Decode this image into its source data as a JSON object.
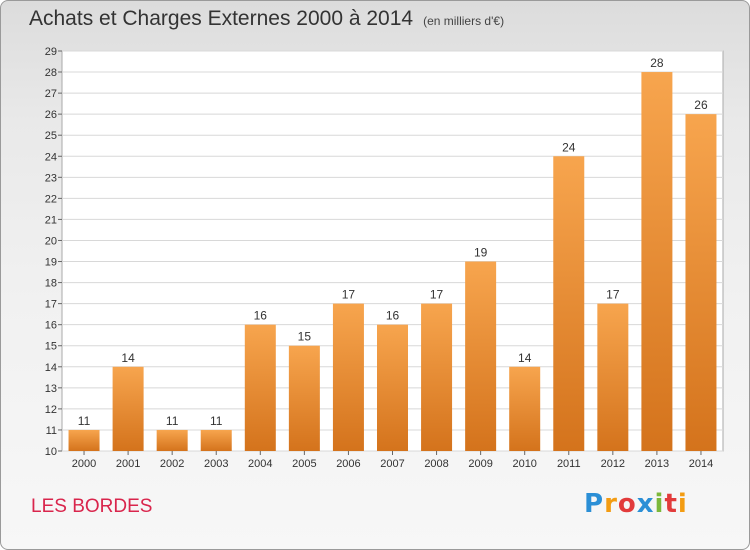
{
  "header": {
    "title": "Achats et Charges Externes 2000 à 2014",
    "subtitle": "(en milliers d'€)"
  },
  "footer": {
    "commune": "LES BORDES",
    "logo": [
      "P",
      "r",
      "o",
      "x",
      "i",
      "t",
      "i"
    ],
    "logo_colors": [
      "#2b8fd6",
      "#f39c12",
      "#e23b3b",
      "#2b8fd6",
      "#7cb83b",
      "#e23b3b",
      "#f39c12"
    ]
  },
  "chart_data": {
    "type": "bar",
    "title": "Achats et Charges Externes 2000 à 2014",
    "subtitle": "(en milliers d'€)",
    "categories": [
      "2000",
      "2001",
      "2002",
      "2003",
      "2004",
      "2005",
      "2006",
      "2007",
      "2008",
      "2009",
      "2010",
      "2011",
      "2012",
      "2013",
      "2014"
    ],
    "values": [
      11,
      14,
      11,
      11,
      16,
      15,
      17,
      16,
      17,
      19,
      14,
      24,
      17,
      28,
      26
    ],
    "ylim": [
      10,
      29
    ],
    "yticks": [
      10,
      11,
      12,
      13,
      14,
      15,
      16,
      17,
      18,
      19,
      20,
      21,
      22,
      23,
      24,
      25,
      26,
      27,
      28,
      29
    ],
    "grid": true,
    "bar_color_top": "#f7a54e",
    "bar_color_bottom": "#d4731c",
    "xlabel": "",
    "ylabel": ""
  }
}
